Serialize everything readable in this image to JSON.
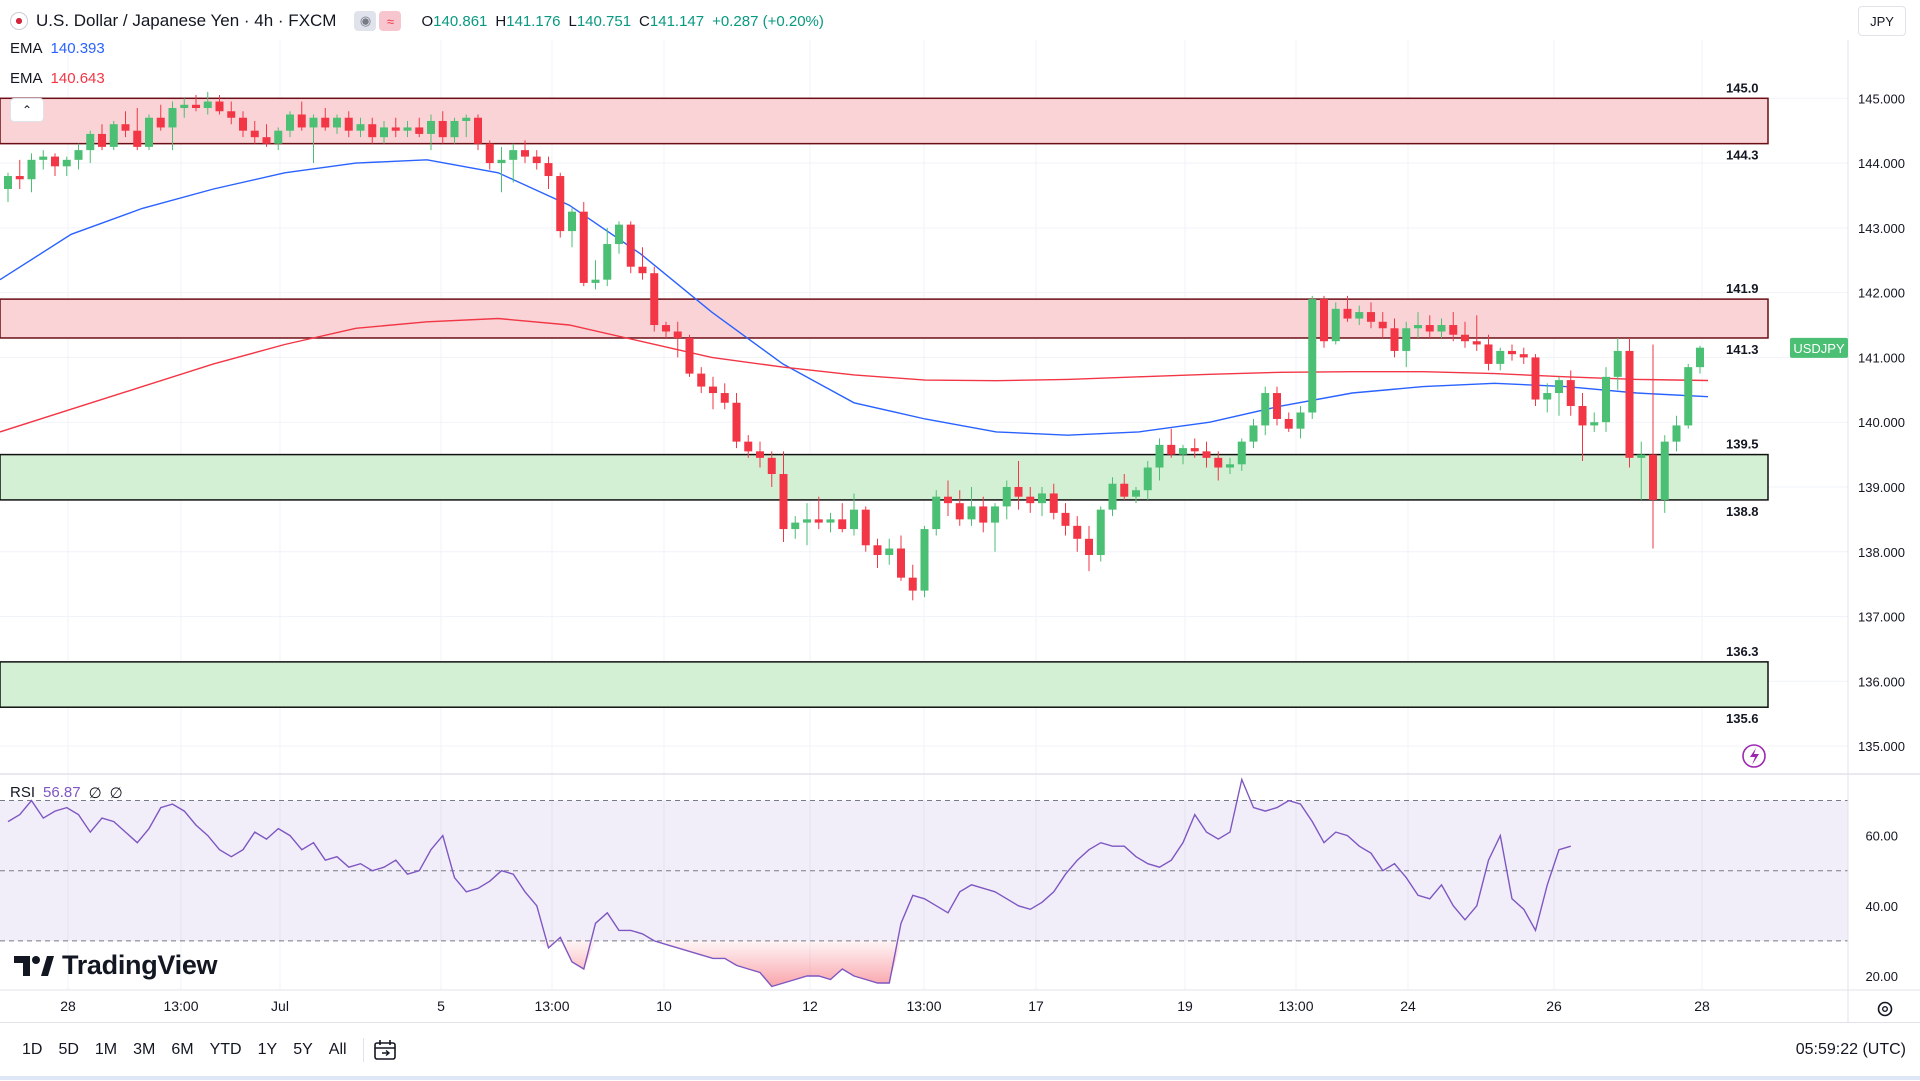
{
  "header": {
    "title": "U.S. Dollar / Japanese Yen · 4h · FXCM",
    "open_label": "O",
    "open": "140.861",
    "high_label": "H",
    "high": "141.176",
    "low_label": "L",
    "low": "140.751",
    "close_label": "C",
    "close": "141.147",
    "change": "+0.287 (+0.20%)"
  },
  "indicators": {
    "ema1": {
      "label": "EMA",
      "value": "140.393"
    },
    "ema2": {
      "label": "EMA",
      "value": "140.643"
    },
    "rsi": {
      "label": "RSI",
      "value": "56.87",
      "extra1": "∅",
      "extra2": "∅"
    }
  },
  "currency_button": "JPY",
  "symbol_tag": "USDJPY",
  "brand": "TradingView",
  "ranges": [
    "1D",
    "5D",
    "1M",
    "3M",
    "6M",
    "YTD",
    "1Y",
    "5Y",
    "All"
  ],
  "clock": "05:59:22 (UTC)",
  "colors": {
    "up": "#26a69a",
    "up_bright": "#4bbf73",
    "down": "#f23645",
    "ema_blue": "#2962ff",
    "ema_red": "#f23645",
    "rsi": "#7e57c2",
    "resistance_fill": "#f9d3d6",
    "support_fill": "#d3f0d4"
  },
  "chart_data": [
    {
      "type": "candlestick",
      "title": "U.S. Dollar / Japanese Yen · 4h · FXCM",
      "ylim": [
        134.6,
        145.9
      ],
      "y_ticks": [
        135.0,
        136.0,
        137.0,
        138.0,
        139.0,
        140.0,
        141.0,
        142.0,
        143.0,
        144.0,
        145.0
      ],
      "x_ticks": [
        "28",
        "13:00",
        "Jul",
        "5",
        "13:00",
        "10",
        "12",
        "13:00",
        "17",
        "19",
        "13:00",
        "24",
        "26",
        "28"
      ],
      "zones": [
        {
          "kind": "resistance",
          "top": 145.0,
          "bottom": 144.3
        },
        {
          "kind": "resistance",
          "top": 141.9,
          "bottom": 141.3
        },
        {
          "kind": "support",
          "top": 139.5,
          "bottom": 138.8
        },
        {
          "kind": "support",
          "top": 136.3,
          "bottom": 135.6
        }
      ],
      "zone_labels": [
        "145.0",
        "144.3",
        "141.9",
        "141.3",
        "139.5",
        "138.8",
        "136.3",
        "135.6"
      ],
      "last_price": 141.147,
      "candles": [
        [
          143.6,
          143.85,
          143.4,
          143.8
        ],
        [
          143.8,
          144.05,
          143.6,
          143.75
        ],
        [
          143.75,
          144.15,
          143.55,
          144.05
        ],
        [
          144.05,
          144.2,
          143.9,
          144.1
        ],
        [
          144.1,
          144.15,
          143.8,
          143.95
        ],
        [
          143.95,
          144.1,
          143.8,
          144.05
        ],
        [
          144.05,
          144.3,
          143.9,
          144.2
        ],
        [
          144.2,
          144.5,
          144.0,
          144.45
        ],
        [
          144.45,
          144.6,
          144.2,
          144.25
        ],
        [
          144.25,
          144.65,
          144.2,
          144.6
        ],
        [
          144.6,
          144.8,
          144.4,
          144.5
        ],
        [
          144.5,
          144.85,
          144.2,
          144.25
        ],
        [
          144.25,
          144.75,
          144.2,
          144.7
        ],
        [
          144.7,
          144.9,
          144.5,
          144.55
        ],
        [
          144.55,
          144.95,
          144.2,
          144.85
        ],
        [
          144.85,
          145.0,
          144.7,
          144.9
        ],
        [
          144.9,
          145.05,
          144.8,
          144.85
        ],
        [
          144.85,
          145.1,
          144.75,
          144.95
        ],
        [
          144.95,
          145.05,
          144.75,
          144.8
        ],
        [
          144.8,
          144.95,
          144.6,
          144.7
        ],
        [
          144.7,
          144.8,
          144.4,
          144.5
        ],
        [
          144.5,
          144.65,
          144.3,
          144.4
        ],
        [
          144.4,
          144.6,
          144.25,
          144.3
        ],
        [
          144.3,
          144.55,
          144.2,
          144.5
        ],
        [
          144.5,
          144.8,
          144.4,
          144.75
        ],
        [
          144.75,
          144.95,
          144.5,
          144.55
        ],
        [
          144.55,
          144.75,
          144.0,
          144.7
        ],
        [
          144.7,
          144.85,
          144.5,
          144.55
        ],
        [
          144.55,
          144.75,
          144.45,
          144.7
        ],
        [
          144.7,
          144.8,
          144.4,
          144.5
        ],
        [
          144.5,
          144.7,
          144.4,
          144.6
        ],
        [
          144.6,
          144.7,
          144.3,
          144.4
        ],
        [
          144.4,
          144.65,
          144.3,
          144.55
        ],
        [
          144.55,
          144.7,
          144.4,
          144.5
        ],
        [
          144.5,
          144.65,
          144.4,
          144.55
        ],
        [
          144.55,
          144.7,
          144.4,
          144.45
        ],
        [
          144.45,
          144.75,
          144.2,
          144.65
        ],
        [
          144.65,
          144.8,
          144.3,
          144.4
        ],
        [
          144.4,
          144.7,
          144.3,
          144.65
        ],
        [
          144.65,
          144.75,
          144.4,
          144.7
        ],
        [
          144.7,
          144.75,
          144.2,
          144.3
        ],
        [
          144.3,
          144.35,
          143.9,
          144.0
        ],
        [
          144.0,
          144.25,
          143.55,
          144.05
        ],
        [
          144.05,
          144.3,
          143.7,
          144.2
        ],
        [
          144.2,
          144.35,
          144.0,
          144.1
        ],
        [
          144.1,
          144.2,
          143.9,
          144.0
        ],
        [
          144.0,
          144.1,
          143.6,
          143.8
        ],
        [
          143.8,
          143.85,
          142.85,
          142.95
        ],
        [
          142.95,
          143.3,
          142.7,
          143.25
        ],
        [
          143.25,
          143.4,
          142.1,
          142.15
        ],
        [
          142.15,
          142.5,
          142.05,
          142.2
        ],
        [
          142.2,
          143.0,
          142.1,
          142.75
        ],
        [
          142.75,
          143.1,
          142.6,
          143.05
        ],
        [
          143.05,
          143.1,
          142.3,
          142.4
        ],
        [
          142.4,
          142.7,
          142.2,
          142.3
        ],
        [
          142.3,
          142.4,
          141.4,
          141.5
        ],
        [
          141.5,
          141.55,
          141.3,
          141.4
        ],
        [
          141.4,
          141.55,
          141.0,
          141.3
        ],
        [
          141.3,
          141.35,
          140.7,
          140.75
        ],
        [
          140.75,
          140.85,
          140.45,
          140.55
        ],
        [
          140.55,
          140.7,
          140.2,
          140.45
        ],
        [
          140.45,
          140.6,
          140.2,
          140.3
        ],
        [
          140.3,
          140.45,
          139.6,
          139.7
        ],
        [
          139.7,
          139.8,
          139.45,
          139.55
        ],
        [
          139.55,
          139.7,
          139.3,
          139.45
        ],
        [
          139.45,
          139.55,
          139.0,
          139.2
        ],
        [
          139.2,
          139.55,
          138.15,
          138.35
        ],
        [
          138.35,
          138.55,
          138.2,
          138.45
        ],
        [
          138.45,
          138.75,
          138.1,
          138.5
        ],
        [
          138.5,
          138.85,
          138.35,
          138.45
        ],
        [
          138.45,
          138.6,
          138.3,
          138.5
        ],
        [
          138.5,
          138.75,
          138.3,
          138.35
        ],
        [
          138.35,
          138.9,
          138.25,
          138.65
        ],
        [
          138.65,
          138.7,
          138.0,
          138.1
        ],
        [
          138.1,
          138.2,
          137.75,
          137.95
        ],
        [
          137.95,
          138.2,
          137.8,
          138.05
        ],
        [
          138.05,
          138.25,
          137.55,
          137.6
        ],
        [
          137.6,
          137.8,
          137.25,
          137.4
        ],
        [
          137.4,
          138.4,
          137.3,
          138.35
        ],
        [
          138.35,
          138.95,
          138.25,
          138.85
        ],
        [
          138.85,
          139.1,
          138.55,
          138.75
        ],
        [
          138.75,
          138.95,
          138.4,
          138.5
        ],
        [
          138.5,
          139.0,
          138.4,
          138.7
        ],
        [
          138.7,
          138.85,
          138.3,
          138.45
        ],
        [
          138.45,
          138.75,
          138.0,
          138.7
        ],
        [
          138.7,
          139.1,
          138.5,
          139.0
        ],
        [
          139.0,
          139.4,
          138.65,
          138.85
        ],
        [
          138.85,
          139.0,
          138.6,
          138.75
        ],
        [
          138.75,
          139.0,
          138.55,
          138.9
        ],
        [
          138.9,
          139.05,
          138.5,
          138.6
        ],
        [
          138.6,
          138.75,
          138.25,
          138.4
        ],
        [
          138.4,
          138.55,
          138.0,
          138.2
        ],
        [
          138.2,
          138.4,
          137.7,
          137.95
        ],
        [
          137.95,
          138.7,
          137.85,
          138.65
        ],
        [
          138.65,
          139.15,
          138.55,
          139.05
        ],
        [
          139.05,
          139.2,
          138.8,
          138.85
        ],
        [
          138.85,
          139.0,
          138.75,
          138.95
        ],
        [
          138.95,
          139.4,
          138.8,
          139.3
        ],
        [
          139.3,
          139.75,
          139.1,
          139.65
        ],
        [
          139.65,
          139.9,
          139.45,
          139.5
        ],
        [
          139.5,
          139.65,
          139.35,
          139.6
        ],
        [
          139.6,
          139.75,
          139.45,
          139.55
        ],
        [
          139.55,
          139.7,
          139.3,
          139.45
        ],
        [
          139.45,
          139.55,
          139.1,
          139.3
        ],
        [
          139.3,
          139.45,
          139.2,
          139.35
        ],
        [
          139.35,
          139.75,
          139.25,
          139.7
        ],
        [
          139.7,
          140.05,
          139.6,
          139.95
        ],
        [
          139.95,
          140.55,
          139.8,
          140.45
        ],
        [
          140.45,
          140.55,
          139.95,
          140.05
        ],
        [
          140.05,
          140.15,
          139.85,
          139.9
        ],
        [
          139.9,
          140.25,
          139.75,
          140.15
        ],
        [
          140.15,
          141.95,
          140.05,
          141.9
        ],
        [
          141.9,
          141.95,
          141.15,
          141.25
        ],
        [
          141.25,
          141.85,
          141.2,
          141.75
        ],
        [
          141.75,
          141.95,
          141.55,
          141.6
        ],
        [
          141.6,
          141.8,
          141.5,
          141.7
        ],
        [
          141.7,
          141.85,
          141.45,
          141.55
        ],
        [
          141.55,
          141.7,
          141.3,
          141.45
        ],
        [
          141.45,
          141.6,
          141.0,
          141.1
        ],
        [
          141.1,
          141.55,
          140.85,
          141.45
        ],
        [
          141.45,
          141.7,
          141.3,
          141.5
        ],
        [
          141.5,
          141.65,
          141.3,
          141.4
        ],
        [
          141.4,
          141.6,
          141.3,
          141.5
        ],
        [
          141.5,
          141.7,
          141.25,
          141.35
        ],
        [
          141.35,
          141.55,
          141.15,
          141.25
        ],
        [
          141.25,
          141.65,
          141.1,
          141.2
        ],
        [
          141.2,
          141.35,
          140.8,
          140.9
        ],
        [
          140.9,
          141.15,
          140.8,
          141.1
        ],
        [
          141.1,
          141.2,
          140.95,
          141.05
        ],
        [
          141.05,
          141.15,
          140.9,
          141.0
        ],
        [
          141.0,
          141.05,
          140.25,
          140.35
        ],
        [
          140.35,
          140.6,
          140.15,
          140.45
        ],
        [
          140.45,
          140.7,
          140.1,
          140.65
        ],
        [
          140.65,
          140.8,
          140.1,
          140.25
        ],
        [
          140.25,
          140.45,
          139.4,
          139.95
        ],
        [
          139.95,
          140.15,
          139.85,
          140.0
        ],
        [
          140.0,
          140.85,
          139.85,
          140.7
        ],
        [
          140.7,
          141.3,
          140.5,
          141.1
        ],
        [
          141.1,
          141.3,
          139.3,
          139.45
        ],
        [
          139.45,
          139.7,
          138.8,
          139.5
        ],
        [
          139.5,
          141.2,
          138.05,
          138.8
        ],
        [
          138.8,
          139.8,
          138.6,
          139.7
        ],
        [
          139.7,
          140.1,
          139.55,
          139.95
        ],
        [
          139.95,
          140.9,
          139.9,
          140.85
        ],
        [
          140.85,
          141.18,
          140.75,
          141.15
        ]
      ],
      "series": [
        {
          "name": "EMA",
          "value": "140.393",
          "values": [
            142.2,
            142.9,
            143.3,
            143.6,
            143.85,
            144.0,
            144.05,
            143.85,
            143.35,
            142.6,
            141.7,
            140.9,
            140.3,
            140.05,
            139.85,
            139.8,
            139.85,
            140.0,
            140.25,
            140.45,
            140.55,
            140.6,
            140.55,
            140.45,
            140.393
          ]
        },
        {
          "name": "EMA",
          "value": "140.643",
          "values": [
            139.85,
            140.2,
            140.55,
            140.9,
            141.2,
            141.45,
            141.55,
            141.6,
            141.5,
            141.25,
            141.0,
            140.85,
            140.73,
            140.65,
            140.64,
            140.66,
            140.7,
            140.74,
            140.77,
            140.78,
            140.78,
            140.75,
            140.7,
            140.66,
            140.643
          ]
        }
      ]
    },
    {
      "type": "line",
      "title": "RSI",
      "ylim": [
        16,
        77
      ],
      "y_ticks": [
        20.0,
        40.0,
        60.0
      ],
      "bands": [
        70,
        50,
        30
      ],
      "series": [
        {
          "name": "RSI",
          "values": [
            64,
            66,
            70,
            65,
            67,
            68,
            66,
            61,
            65,
            64,
            61,
            58,
            62,
            68,
            69,
            67,
            63,
            60,
            56,
            54,
            56,
            61,
            59,
            62,
            60,
            56,
            58,
            53,
            54,
            51,
            52,
            50,
            51,
            53,
            49,
            50,
            56,
            60,
            48,
            44,
            45,
            47,
            50,
            49,
            44,
            40,
            28,
            31,
            24,
            22,
            35,
            38,
            33,
            33,
            32,
            30,
            29,
            28,
            27,
            26,
            25,
            25,
            23,
            22,
            21,
            17,
            18,
            19,
            20,
            20,
            19,
            22,
            20,
            19,
            18,
            18,
            35,
            43,
            42,
            40,
            38,
            44,
            46,
            45,
            44,
            42,
            40,
            39,
            41,
            44,
            49,
            53,
            56,
            58,
            57,
            57,
            54,
            52,
            51,
            53,
            58,
            66,
            61,
            59,
            61,
            76,
            68,
            67,
            68,
            70,
            69,
            64,
            58,
            61,
            60,
            57,
            55,
            50,
            52,
            48,
            43,
            42,
            46,
            40,
            36,
            40,
            53,
            60,
            42,
            39,
            33,
            46,
            56,
            57
          ]
        }
      ]
    }
  ]
}
